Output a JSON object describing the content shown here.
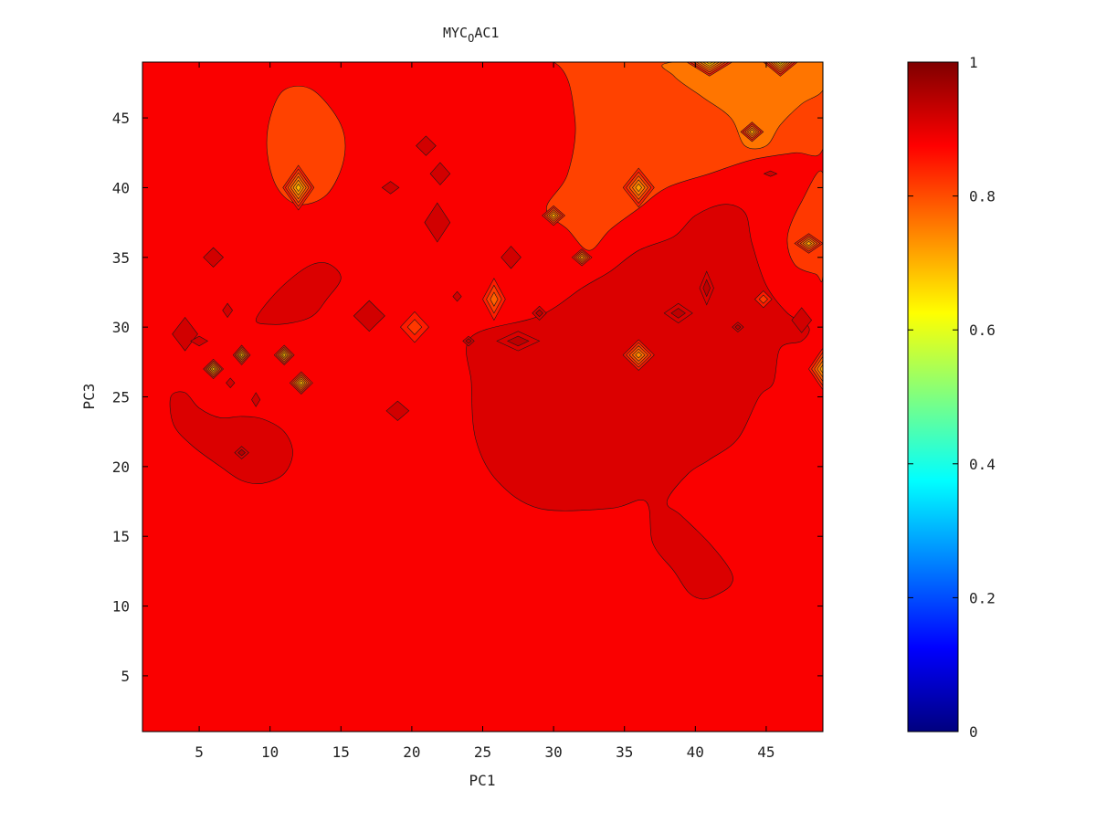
{
  "chart_data": {
    "type": "heatmap",
    "subtype": "filled-contour",
    "title": "MYC",
    "title_subscript": "O",
    "title_suffix": "AC1",
    "xlabel": "PC1",
    "ylabel": "PC3",
    "xlim": [
      1,
      49
    ],
    "ylim": [
      1,
      49
    ],
    "xticks": [
      5,
      10,
      15,
      20,
      25,
      30,
      35,
      40,
      45
    ],
    "yticks": [
      5,
      10,
      15,
      20,
      25,
      30,
      35,
      40,
      45
    ],
    "colorbar": {
      "colormap": "jet",
      "range": [
        0,
        1
      ],
      "ticks": [
        0,
        0.2,
        0.4,
        0.6,
        0.8,
        1
      ],
      "tick_labels": [
        "0",
        "0.2",
        "0.4",
        "0.6",
        "0.8",
        "1"
      ]
    },
    "background_value": 0.88,
    "regions": [
      {
        "type": "blob",
        "value": 0.81,
        "points": [
          [
            24,
            49
          ],
          [
            30,
            49
          ],
          [
            31.5,
            45
          ],
          [
            31,
            41
          ],
          [
            29.5,
            38.5
          ],
          [
            31,
            37
          ],
          [
            32.5,
            35.5
          ],
          [
            34,
            37
          ],
          [
            36,
            38.5
          ],
          [
            38,
            40
          ],
          [
            41,
            41
          ],
          [
            44,
            42
          ],
          [
            47,
            42.5
          ],
          [
            49,
            42.8
          ],
          [
            49,
            49
          ]
        ]
      },
      {
        "type": "blob",
        "value": 0.81,
        "points": [
          [
            10,
            45
          ],
          [
            11,
            47
          ],
          [
            13,
            47
          ],
          [
            15,
            44.5
          ],
          [
            15.2,
            42
          ],
          [
            14,
            39.5
          ],
          [
            12,
            38.8
          ],
          [
            10.5,
            40
          ],
          [
            9.8,
            42.5
          ]
        ]
      },
      {
        "type": "blob",
        "value": 0.76,
        "points": [
          [
            38.5,
            49
          ],
          [
            49,
            49
          ],
          [
            49,
            47
          ],
          [
            47.5,
            46
          ],
          [
            46,
            44.5
          ],
          [
            45,
            43
          ],
          [
            43.5,
            43
          ],
          [
            42.5,
            45
          ],
          [
            40.5,
            46.5
          ],
          [
            38.5,
            48
          ]
        ]
      },
      {
        "type": "blob",
        "value": 0.82,
        "points": [
          [
            49,
            41
          ],
          [
            47.5,
            39
          ],
          [
            46.5,
            36.5
          ],
          [
            47,
            34.5
          ],
          [
            48.5,
            33.8
          ],
          [
            49,
            33.8
          ]
        ]
      },
      {
        "type": "blob",
        "value": 0.91,
        "points": [
          [
            24.2,
            29.3
          ],
          [
            29,
            30.8
          ],
          [
            32,
            32.8
          ],
          [
            34,
            34
          ],
          [
            36,
            35.5
          ],
          [
            38.5,
            36.5
          ],
          [
            40,
            38
          ],
          [
            42,
            38.8
          ],
          [
            43.5,
            38.2
          ],
          [
            44,
            36
          ],
          [
            45,
            33
          ],
          [
            46.5,
            31
          ],
          [
            48,
            30
          ],
          [
            47.5,
            29
          ],
          [
            46,
            28.5
          ],
          [
            45.5,
            26
          ],
          [
            44.5,
            25
          ],
          [
            43,
            22
          ],
          [
            41,
            20.5
          ],
          [
            39.5,
            19.5
          ],
          [
            38,
            17.5
          ],
          [
            39,
            16.5
          ],
          [
            41,
            14.5
          ],
          [
            42.5,
            12.5
          ],
          [
            42.5,
            11.5
          ],
          [
            41.5,
            10.8
          ],
          [
            40.5,
            10.5
          ],
          [
            39.5,
            11
          ],
          [
            38.5,
            12.5
          ],
          [
            37,
            14.5
          ],
          [
            36.5,
            17.5
          ],
          [
            34,
            17
          ],
          [
            29,
            17
          ],
          [
            26,
            19
          ],
          [
            24.5,
            22
          ],
          [
            24.2,
            26
          ]
        ]
      },
      {
        "type": "blob",
        "value": 0.91,
        "points": [
          [
            3,
            25
          ],
          [
            3.2,
            23
          ],
          [
            4.5,
            21.5
          ],
          [
            6.5,
            20
          ],
          [
            8,
            19
          ],
          [
            9.5,
            18.8
          ],
          [
            11,
            19.5
          ],
          [
            11.6,
            21
          ],
          [
            11,
            22.5
          ],
          [
            9.5,
            23.4
          ],
          [
            8,
            23.6
          ],
          [
            6.5,
            23.5
          ],
          [
            5,
            24.2
          ],
          [
            4,
            25.3
          ]
        ]
      },
      {
        "type": "blob",
        "value": 0.91,
        "points": [
          [
            9,
            30.5
          ],
          [
            10,
            32
          ],
          [
            11.5,
            33.5
          ],
          [
            13,
            34.5
          ],
          [
            14.2,
            34.5
          ],
          [
            15,
            33.5
          ],
          [
            14,
            32
          ],
          [
            13,
            30.8
          ],
          [
            11.5,
            30.3
          ],
          [
            10,
            30.2
          ]
        ]
      },
      {
        "type": "peak",
        "x": 12,
        "y": 40,
        "rx": 1.1,
        "ry": 1.6,
        "value": 0.7
      },
      {
        "type": "peak",
        "x": 8,
        "y": 28,
        "rx": 0.6,
        "ry": 0.7,
        "value": 0.7
      },
      {
        "type": "peak",
        "x": 6,
        "y": 27,
        "rx": 0.7,
        "ry": 0.7,
        "value": 0.7
      },
      {
        "type": "peak",
        "x": 11,
        "y": 28,
        "rx": 0.7,
        "ry": 0.7,
        "value": 0.7
      },
      {
        "type": "peak",
        "x": 12.2,
        "y": 26,
        "rx": 0.8,
        "ry": 0.8,
        "value": 0.7
      },
      {
        "type": "peak",
        "x": 30,
        "y": 38,
        "rx": 0.8,
        "ry": 0.7,
        "value": 0.72
      },
      {
        "type": "peak",
        "x": 32,
        "y": 35,
        "rx": 0.7,
        "ry": 0.6,
        "value": 0.74
      },
      {
        "type": "peak",
        "x": 36,
        "y": 40,
        "rx": 1.1,
        "ry": 1.4,
        "value": 0.72
      },
      {
        "type": "peak",
        "x": 36,
        "y": 28,
        "rx": 1.1,
        "ry": 1.1,
        "value": 0.74
      },
      {
        "type": "peak",
        "x": 20.2,
        "y": 30,
        "rx": 1.0,
        "ry": 1.1,
        "value": 0.82
      },
      {
        "type": "peak",
        "x": 25.8,
        "y": 32,
        "rx": 0.8,
        "ry": 1.5,
        "value": 0.78
      },
      {
        "type": "peak",
        "x": 44,
        "y": 44,
        "rx": 0.8,
        "ry": 0.7,
        "value": 0.72
      },
      {
        "type": "peak",
        "x": 41,
        "y": 49,
        "rx": 1.6,
        "ry": 1.0,
        "value": 0.68
      },
      {
        "type": "peak",
        "x": 46,
        "y": 49,
        "rx": 1.2,
        "ry": 1.0,
        "value": 0.68
      },
      {
        "type": "peak",
        "x": 48,
        "y": 36,
        "rx": 1.0,
        "ry": 0.7,
        "value": 0.72
      },
      {
        "type": "peak",
        "x": 49,
        "y": 27,
        "rx": 1.0,
        "ry": 1.5,
        "value": 0.72
      },
      {
        "type": "peak",
        "x": 44.8,
        "y": 32,
        "rx": 0.6,
        "ry": 0.6,
        "value": 0.82
      },
      {
        "type": "peak",
        "x": 4,
        "y": 29.5,
        "rx": 0.9,
        "ry": 1.2,
        "value": 0.92
      },
      {
        "type": "peak",
        "x": 6,
        "y": 35,
        "rx": 0.7,
        "ry": 0.7,
        "value": 0.92
      },
      {
        "type": "peak",
        "x": 21,
        "y": 43,
        "rx": 0.7,
        "ry": 0.7,
        "value": 0.92
      },
      {
        "type": "peak",
        "x": 22,
        "y": 41,
        "rx": 0.7,
        "ry": 0.8,
        "value": 0.92
      },
      {
        "type": "peak",
        "x": 18.5,
        "y": 40,
        "rx": 0.6,
        "ry": 0.45,
        "value": 0.92
      },
      {
        "type": "peak",
        "x": 21.8,
        "y": 37.5,
        "rx": 0.9,
        "ry": 1.4,
        "value": 0.92
      },
      {
        "type": "peak",
        "x": 17,
        "y": 30.8,
        "rx": 1.1,
        "ry": 1.1,
        "value": 0.92
      },
      {
        "type": "peak",
        "x": 27,
        "y": 35,
        "rx": 0.7,
        "ry": 0.8,
        "value": 0.92
      },
      {
        "type": "peak",
        "x": 29,
        "y": 31,
        "rx": 0.5,
        "ry": 0.5,
        "value": 0.94
      },
      {
        "type": "peak",
        "x": 27.5,
        "y": 29,
        "rx": 1.5,
        "ry": 0.7,
        "value": 0.94
      },
      {
        "type": "peak",
        "x": 38.8,
        "y": 31,
        "rx": 1.0,
        "ry": 0.7,
        "value": 0.94
      },
      {
        "type": "peak",
        "x": 40.8,
        "y": 32.8,
        "rx": 0.5,
        "ry": 1.2,
        "value": 0.94
      },
      {
        "type": "peak",
        "x": 19,
        "y": 24,
        "rx": 0.8,
        "ry": 0.7,
        "value": 0.92
      },
      {
        "type": "peak",
        "x": 8,
        "y": 21,
        "rx": 0.5,
        "ry": 0.45,
        "value": 0.95
      },
      {
        "type": "peak",
        "x": 9,
        "y": 24.8,
        "rx": 0.3,
        "ry": 0.5,
        "value": 0.92
      },
      {
        "type": "peak",
        "x": 7,
        "y": 31.2,
        "rx": 0.35,
        "ry": 0.5,
        "value": 0.92
      },
      {
        "type": "peak",
        "x": 7.2,
        "y": 26,
        "rx": 0.3,
        "ry": 0.35,
        "value": 0.92
      },
      {
        "type": "peak",
        "x": 5,
        "y": 29,
        "rx": 0.6,
        "ry": 0.35,
        "value": 0.92
      },
      {
        "type": "peak",
        "x": 23.2,
        "y": 32.2,
        "rx": 0.3,
        "ry": 0.35,
        "value": 0.92
      },
      {
        "type": "peak",
        "x": 24,
        "y": 29,
        "rx": 0.4,
        "ry": 0.35,
        "value": 0.94
      },
      {
        "type": "peak",
        "x": 43,
        "y": 30,
        "rx": 0.4,
        "ry": 0.35,
        "value": 0.94
      },
      {
        "type": "peak",
        "x": 45.3,
        "y": 41,
        "rx": 0.45,
        "ry": 0.2,
        "value": 0.92
      },
      {
        "type": "peak",
        "x": 47.5,
        "y": 30.5,
        "rx": 0.7,
        "ry": 0.9,
        "value": 0.92
      }
    ]
  }
}
